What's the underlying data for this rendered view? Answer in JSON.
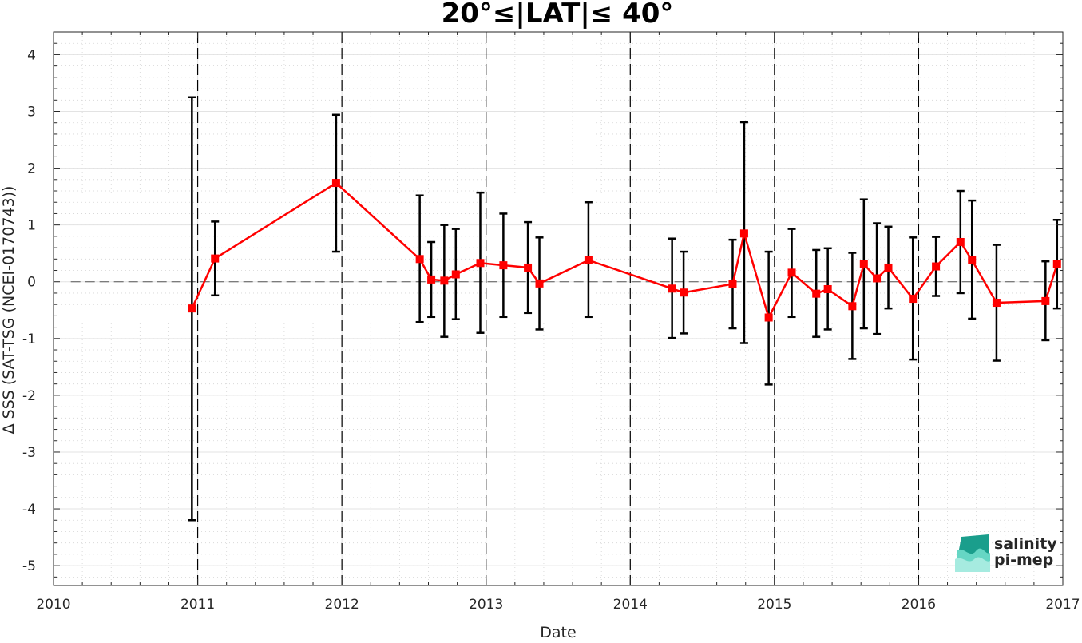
{
  "chart_data": {
    "type": "line",
    "title": "20°≤|LAT|≤ 40°",
    "xlabel": "Date",
    "ylabel": "Δ SSS (SAT-TSG (NCEI-0170743))",
    "xlim": [
      2010,
      2017
    ],
    "ylim": [
      -5.35,
      4.4
    ],
    "x_ticks": [
      "2010",
      "2011",
      "2012",
      "2013",
      "2014",
      "2015",
      "2016",
      "2017"
    ],
    "y_ticks": [
      "4",
      "3",
      "2",
      "1",
      "0",
      "-1",
      "-2",
      "-3",
      "-4",
      "-5"
    ],
    "grid": true,
    "year_markers": [
      2011,
      2012,
      2013,
      2014,
      2015,
      2016
    ],
    "reference_line": 0,
    "series": [
      {
        "color": "#ff0000",
        "errorbar_color": "#000000",
        "x": [
          2010.96,
          2011.12,
          2011.96,
          2012.54,
          2012.62,
          2012.71,
          2012.79,
          2012.96,
          2013.12,
          2013.29,
          2013.37,
          2013.71,
          2014.29,
          2014.37,
          2014.71,
          2014.79,
          2014.96,
          2015.12,
          2015.29,
          2015.37,
          2015.54,
          2015.62,
          2015.71,
          2015.79,
          2015.96,
          2016.12,
          2016.29,
          2016.37,
          2016.54,
          2016.88,
          2016.96
        ],
        "y": [
          -0.47,
          0.41,
          1.74,
          0.4,
          0.04,
          0.02,
          0.13,
          0.33,
          0.29,
          0.25,
          -0.03,
          0.38,
          -0.12,
          -0.19,
          -0.04,
          0.85,
          -0.63,
          0.16,
          -0.21,
          -0.13,
          -0.43,
          0.31,
          0.06,
          0.25,
          -0.3,
          0.27,
          0.7,
          0.38,
          -0.37,
          -0.34,
          0.31
        ],
        "lower": [
          -4.2,
          -0.24,
          0.53,
          -0.71,
          -0.62,
          -0.97,
          -0.66,
          -0.9,
          -0.62,
          -0.55,
          -0.84,
          -0.62,
          -0.99,
          -0.91,
          -0.82,
          -1.08,
          -1.81,
          -0.62,
          -0.97,
          -0.84,
          -1.36,
          -0.82,
          -0.92,
          -0.47,
          -1.37,
          -0.25,
          -0.2,
          -0.65,
          -1.39,
          -1.03,
          -0.47
        ],
        "upper": [
          3.25,
          1.06,
          2.94,
          1.52,
          0.7,
          1.0,
          0.93,
          1.57,
          1.2,
          1.05,
          0.78,
          1.4,
          0.76,
          0.53,
          0.74,
          2.81,
          0.53,
          0.93,
          0.56,
          0.59,
          0.51,
          1.45,
          1.03,
          0.97,
          0.78,
          0.79,
          1.6,
          1.43,
          0.65,
          0.36,
          1.09
        ]
      }
    ]
  },
  "logo": {
    "line1": "salinity",
    "line2": "pi-mep",
    "color1": "#1fb8a4",
    "color2": "#1a7a6e"
  }
}
